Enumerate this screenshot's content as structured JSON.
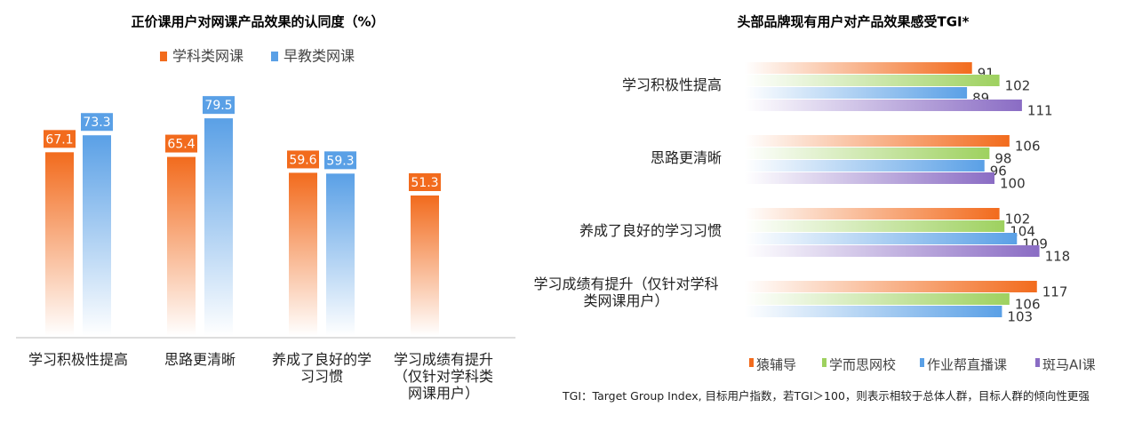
{
  "chart_data": [
    {
      "type": "bar",
      "title": "正价课用户对网课产品效果的认同度（%）",
      "categories": [
        "学习积极性提高",
        "思路更清晰",
        "养成了良好的学习习惯",
        "学习成绩有提升（仅针对学科类网课用户）"
      ],
      "series": [
        {
          "name": "学科类网课",
          "color": "#f26b1d",
          "values": [
            67.1,
            65.4,
            59.6,
            51.3
          ]
        },
        {
          "name": "早教类网课",
          "color": "#5aa0e6",
          "values": [
            73.3,
            79.5,
            59.3,
            null
          ]
        }
      ]
    },
    {
      "type": "hbar",
      "title": "头部品牌现有用户对产品效果感受TGI*",
      "categories": [
        "学习积极性提高",
        "思路更清晰",
        "养成了良好的学习习惯",
        "学习成绩有提升（仅针对学科类网课用户）"
      ],
      "series": [
        {
          "name": "猿辅导",
          "color": "#f26b1d",
          "values": [
            91,
            106,
            102,
            117
          ]
        },
        {
          "name": "学而思网校",
          "color": "#9ed15f",
          "values": [
            102,
            98,
            104,
            106
          ]
        },
        {
          "name": "作业帮直播课",
          "color": "#5aa0e6",
          "values": [
            89,
            96,
            109,
            103
          ]
        },
        {
          "name": "斑马AI课",
          "color": "#8a6cc4",
          "values": [
            111,
            100,
            118,
            null
          ]
        }
      ]
    }
  ],
  "footnote": "TGI：Target Group Index, 目标用户指数，若TGI＞100，则表示相较于总体人群，目标人群的倾向性更强"
}
